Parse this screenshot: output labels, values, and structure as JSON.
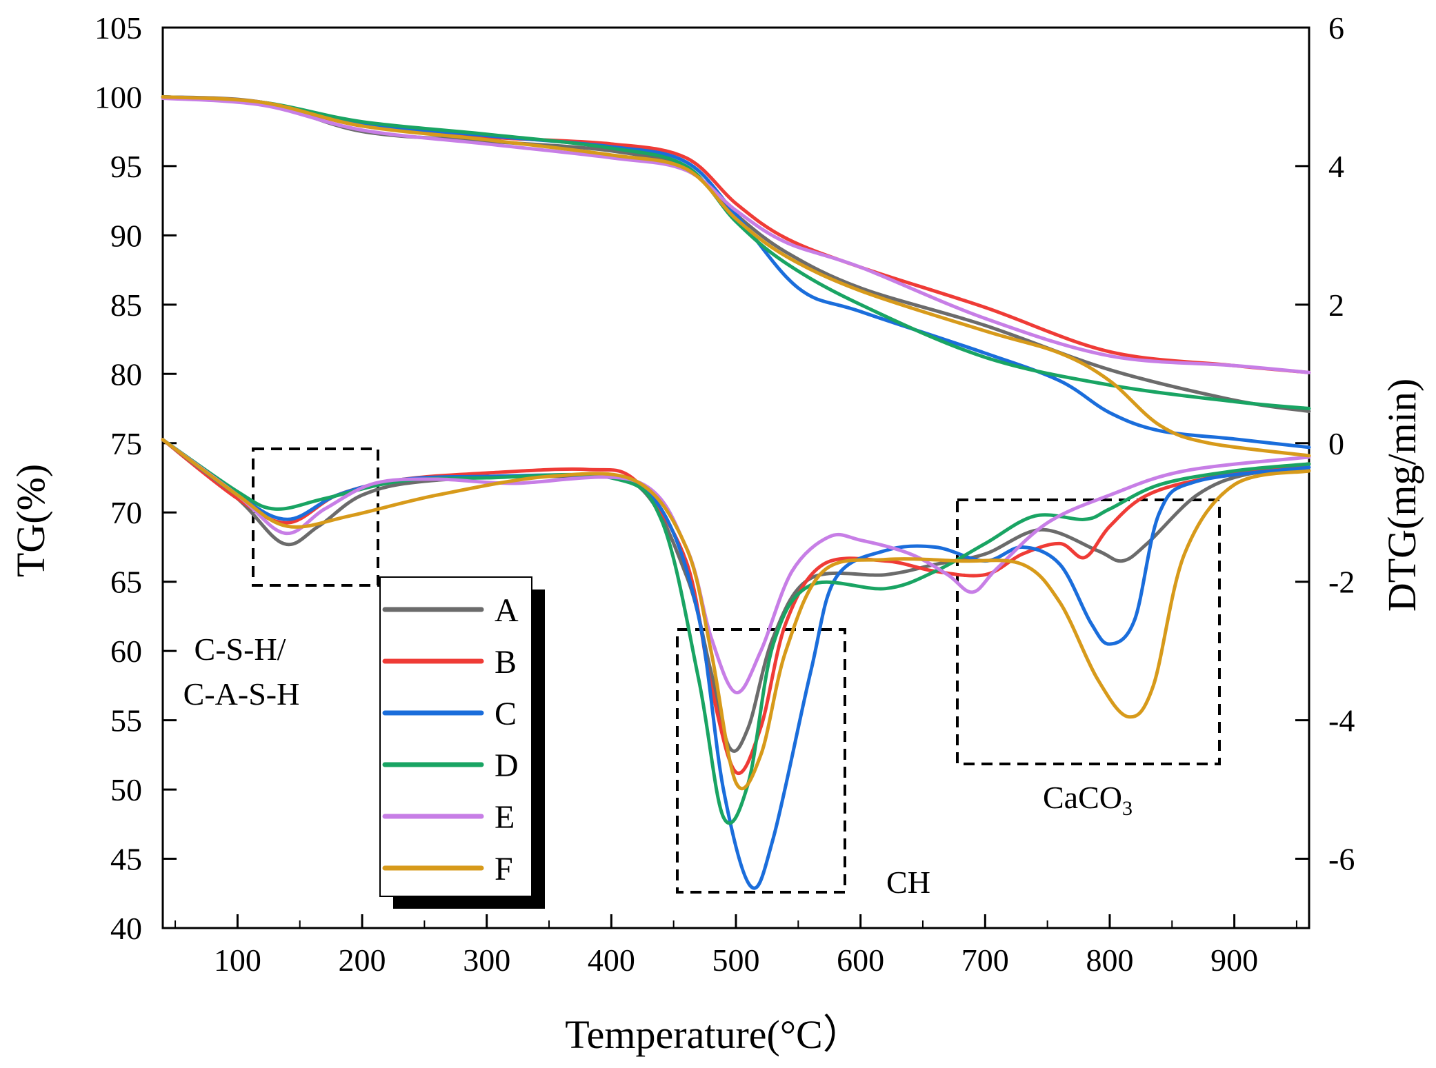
{
  "chart_data": {
    "type": "line",
    "xlabel": "Temperature(°C）",
    "ylabel_left": "TG(%)",
    "ylabel_right": "DTG(mg/min)",
    "xlim": [
      40,
      960
    ],
    "ylim_left": [
      40,
      105
    ],
    "ylim_right": [
      -7,
      6
    ],
    "xticks": [
      100,
      200,
      300,
      400,
      500,
      600,
      700,
      800,
      900
    ],
    "yticks_left": [
      40,
      45,
      50,
      55,
      60,
      65,
      70,
      75,
      80,
      85,
      90,
      95,
      100,
      105
    ],
    "yticks_right": [
      -6,
      -4,
      -2,
      0,
      2,
      4,
      6
    ],
    "legend_position": "inside-left",
    "annotations": {
      "csh_line1": "C-S-H/",
      "csh_line2": "C-A-S-H",
      "ch": "CH",
      "caco3_main": "CaCO",
      "caco3_sub": "3"
    },
    "series": [
      {
        "name": "A",
        "color": "#6b6b6b",
        "tg": [
          [
            40,
            100
          ],
          [
            120,
            99.6
          ],
          [
            200,
            97.5
          ],
          [
            300,
            96.8
          ],
          [
            400,
            96.1
          ],
          [
            460,
            94.8
          ],
          [
            500,
            91.5
          ],
          [
            540,
            88.8
          ],
          [
            600,
            86.2
          ],
          [
            700,
            83.5
          ],
          [
            800,
            80.3
          ],
          [
            900,
            78.1
          ],
          [
            960,
            77.3
          ]
        ],
        "dtg": [
          [
            40,
            0.05
          ],
          [
            100,
            -0.8
          ],
          [
            137,
            -1.45
          ],
          [
            165,
            -1.2
          ],
          [
            200,
            -0.75
          ],
          [
            250,
            -0.55
          ],
          [
            350,
            -0.48
          ],
          [
            420,
            -0.6
          ],
          [
            460,
            -1.9
          ],
          [
            480,
            -3.3
          ],
          [
            495,
            -4.4
          ],
          [
            510,
            -4.1
          ],
          [
            530,
            -2.8
          ],
          [
            560,
            -1.95
          ],
          [
            620,
            -1.9
          ],
          [
            660,
            -1.75
          ],
          [
            700,
            -1.6
          ],
          [
            745,
            -1.25
          ],
          [
            790,
            -1.55
          ],
          [
            810,
            -1.7
          ],
          [
            830,
            -1.45
          ],
          [
            870,
            -0.75
          ],
          [
            910,
            -0.45
          ],
          [
            960,
            -0.4
          ]
        ]
      },
      {
        "name": "B",
        "color": "#ef3b36",
        "tg": [
          [
            40,
            100
          ],
          [
            120,
            99.6
          ],
          [
            200,
            97.9
          ],
          [
            300,
            97.1
          ],
          [
            400,
            96.6
          ],
          [
            460,
            95.6
          ],
          [
            500,
            92.3
          ],
          [
            540,
            89.8
          ],
          [
            600,
            87.7
          ],
          [
            700,
            84.8
          ],
          [
            800,
            81.6
          ],
          [
            900,
            80.6
          ],
          [
            960,
            80.1
          ]
        ],
        "dtg": [
          [
            40,
            0.05
          ],
          [
            100,
            -0.8
          ],
          [
            140,
            -1.15
          ],
          [
            180,
            -0.75
          ],
          [
            230,
            -0.53
          ],
          [
            300,
            -0.43
          ],
          [
            380,
            -0.38
          ],
          [
            420,
            -0.55
          ],
          [
            460,
            -1.7
          ],
          [
            480,
            -3.5
          ],
          [
            500,
            -4.75
          ],
          [
            520,
            -4.1
          ],
          [
            540,
            -2.6
          ],
          [
            570,
            -1.75
          ],
          [
            620,
            -1.7
          ],
          [
            660,
            -1.85
          ],
          [
            700,
            -1.9
          ],
          [
            730,
            -1.6
          ],
          [
            760,
            -1.45
          ],
          [
            780,
            -1.65
          ],
          [
            800,
            -1.2
          ],
          [
            830,
            -0.75
          ],
          [
            880,
            -0.5
          ],
          [
            960,
            -0.3
          ]
        ]
      },
      {
        "name": "C",
        "color": "#1a6ddb",
        "tg": [
          [
            40,
            100
          ],
          [
            120,
            99.6
          ],
          [
            200,
            98.1
          ],
          [
            300,
            97.2
          ],
          [
            400,
            96.4
          ],
          [
            460,
            95.3
          ],
          [
            500,
            91.5
          ],
          [
            550,
            86.2
          ],
          [
            600,
            84.5
          ],
          [
            700,
            81.5
          ],
          [
            760,
            79.5
          ],
          [
            800,
            77.2
          ],
          [
            840,
            75.9
          ],
          [
            900,
            75.3
          ],
          [
            960,
            74.7
          ]
        ],
        "dtg": [
          [
            40,
            0.05
          ],
          [
            100,
            -0.75
          ],
          [
            140,
            -1.1
          ],
          [
            180,
            -0.75
          ],
          [
            230,
            -0.53
          ],
          [
            300,
            -0.48
          ],
          [
            400,
            -0.5
          ],
          [
            440,
            -0.95
          ],
          [
            470,
            -2.5
          ],
          [
            490,
            -5.0
          ],
          [
            512,
            -6.4
          ],
          [
            530,
            -5.7
          ],
          [
            560,
            -3.3
          ],
          [
            580,
            -1.95
          ],
          [
            620,
            -1.55
          ],
          [
            660,
            -1.5
          ],
          [
            700,
            -1.7
          ],
          [
            730,
            -1.5
          ],
          [
            760,
            -1.75
          ],
          [
            785,
            -2.6
          ],
          [
            800,
            -2.9
          ],
          [
            820,
            -2.55
          ],
          [
            840,
            -1.0
          ],
          [
            870,
            -0.55
          ],
          [
            960,
            -0.35
          ]
        ]
      },
      {
        "name": "D",
        "color": "#19a463",
        "tg": [
          [
            40,
            100
          ],
          [
            120,
            99.6
          ],
          [
            200,
            98.2
          ],
          [
            300,
            97.3
          ],
          [
            400,
            96.3
          ],
          [
            460,
            95.0
          ],
          [
            500,
            91.0
          ],
          [
            540,
            88.0
          ],
          [
            600,
            85.0
          ],
          [
            700,
            81.2
          ],
          [
            800,
            79.2
          ],
          [
            900,
            78.0
          ],
          [
            960,
            77.5
          ]
        ],
        "dtg": [
          [
            40,
            0.05
          ],
          [
            100,
            -0.7
          ],
          [
            130,
            -0.95
          ],
          [
            170,
            -0.8
          ],
          [
            230,
            -0.55
          ],
          [
            300,
            -0.5
          ],
          [
            400,
            -0.5
          ],
          [
            440,
            -1.1
          ],
          [
            470,
            -3.4
          ],
          [
            490,
            -5.4
          ],
          [
            510,
            -4.9
          ],
          [
            530,
            -2.9
          ],
          [
            560,
            -2.05
          ],
          [
            620,
            -2.1
          ],
          [
            660,
            -1.85
          ],
          [
            700,
            -1.45
          ],
          [
            740,
            -1.05
          ],
          [
            780,
            -1.1
          ],
          [
            800,
            -0.95
          ],
          [
            840,
            -0.6
          ],
          [
            900,
            -0.4
          ],
          [
            960,
            -0.3
          ]
        ]
      },
      {
        "name": "E",
        "color": "#c77ee6",
        "tg": [
          [
            40,
            99.9
          ],
          [
            120,
            99.4
          ],
          [
            200,
            97.6
          ],
          [
            300,
            96.6
          ],
          [
            400,
            95.6
          ],
          [
            460,
            94.7
          ],
          [
            500,
            91.8
          ],
          [
            540,
            89.5
          ],
          [
            600,
            87.7
          ],
          [
            700,
            84.0
          ],
          [
            800,
            81.3
          ],
          [
            900,
            80.6
          ],
          [
            960,
            80.1
          ]
        ],
        "dtg": [
          [
            40,
            0.05
          ],
          [
            100,
            -0.75
          ],
          [
            138,
            -1.3
          ],
          [
            170,
            -0.95
          ],
          [
            210,
            -0.58
          ],
          [
            260,
            -0.52
          ],
          [
            320,
            -0.58
          ],
          [
            420,
            -0.55
          ],
          [
            460,
            -1.5
          ],
          [
            480,
            -2.8
          ],
          [
            500,
            -3.6
          ],
          [
            520,
            -3.0
          ],
          [
            545,
            -1.85
          ],
          [
            575,
            -1.35
          ],
          [
            600,
            -1.4
          ],
          [
            640,
            -1.6
          ],
          [
            670,
            -1.9
          ],
          [
            690,
            -2.15
          ],
          [
            710,
            -1.8
          ],
          [
            750,
            -1.15
          ],
          [
            800,
            -0.75
          ],
          [
            860,
            -0.4
          ],
          [
            960,
            -0.2
          ]
        ]
      },
      {
        "name": "F",
        "color": "#d79a1a",
        "tg": [
          [
            40,
            100
          ],
          [
            120,
            99.6
          ],
          [
            200,
            97.9
          ],
          [
            300,
            96.9
          ],
          [
            400,
            95.8
          ],
          [
            460,
            94.8
          ],
          [
            500,
            91.2
          ],
          [
            540,
            88.5
          ],
          [
            600,
            86.0
          ],
          [
            700,
            83.1
          ],
          [
            760,
            81.5
          ],
          [
            800,
            79.5
          ],
          [
            840,
            76.3
          ],
          [
            880,
            75.0
          ],
          [
            960,
            74.1
          ]
        ],
        "dtg": [
          [
            40,
            0.05
          ],
          [
            100,
            -0.75
          ],
          [
            140,
            -1.2
          ],
          [
            190,
            -1.05
          ],
          [
            260,
            -0.75
          ],
          [
            350,
            -0.48
          ],
          [
            420,
            -0.55
          ],
          [
            460,
            -1.5
          ],
          [
            480,
            -3.0
          ],
          [
            500,
            -4.9
          ],
          [
            520,
            -4.5
          ],
          [
            540,
            -3.0
          ],
          [
            570,
            -1.85
          ],
          [
            620,
            -1.68
          ],
          [
            680,
            -1.7
          ],
          [
            730,
            -1.75
          ],
          [
            760,
            -2.3
          ],
          [
            790,
            -3.4
          ],
          [
            815,
            -3.95
          ],
          [
            835,
            -3.5
          ],
          [
            860,
            -1.6
          ],
          [
            900,
            -0.6
          ],
          [
            960,
            -0.4
          ]
        ]
      }
    ]
  }
}
